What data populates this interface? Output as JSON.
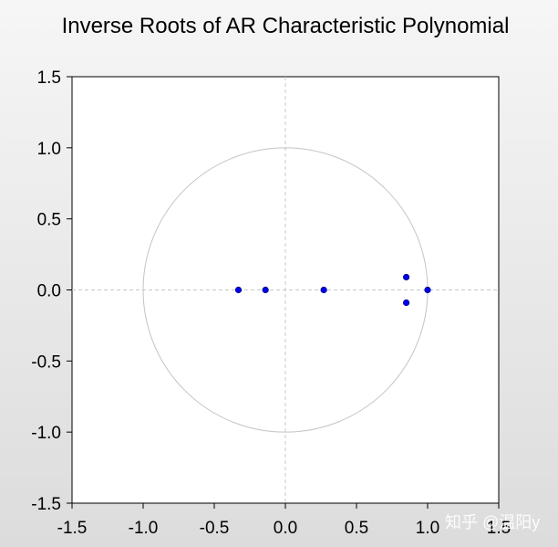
{
  "chart_data": {
    "type": "scatter",
    "title": "Inverse Roots of AR Characteristic Polynomial",
    "xlabel": "",
    "ylabel": "",
    "xlim": [
      -1.5,
      1.5
    ],
    "ylim": [
      -1.5,
      1.5
    ],
    "x_ticks": [
      "-1.5",
      "-1.0",
      "-0.5",
      "0.0",
      "0.5",
      "1.0",
      "1.5"
    ],
    "y_ticks": [
      "1.5",
      "1.0",
      "0.5",
      "0.0",
      "-0.5",
      "-1.0",
      "-1.5"
    ],
    "unit_circle": true,
    "grid": false,
    "zero_lines": true,
    "legend": "none",
    "point_color": "#0000ee",
    "circle_color": "#c4c4c4",
    "points": [
      {
        "x": -0.33,
        "y": 0.0
      },
      {
        "x": -0.14,
        "y": 0.0
      },
      {
        "x": 0.27,
        "y": 0.0
      },
      {
        "x": 0.85,
        "y": 0.09
      },
      {
        "x": 0.85,
        "y": -0.09
      },
      {
        "x": 1.0,
        "y": 0.0
      }
    ]
  },
  "watermark": "知乎 @温阳y"
}
